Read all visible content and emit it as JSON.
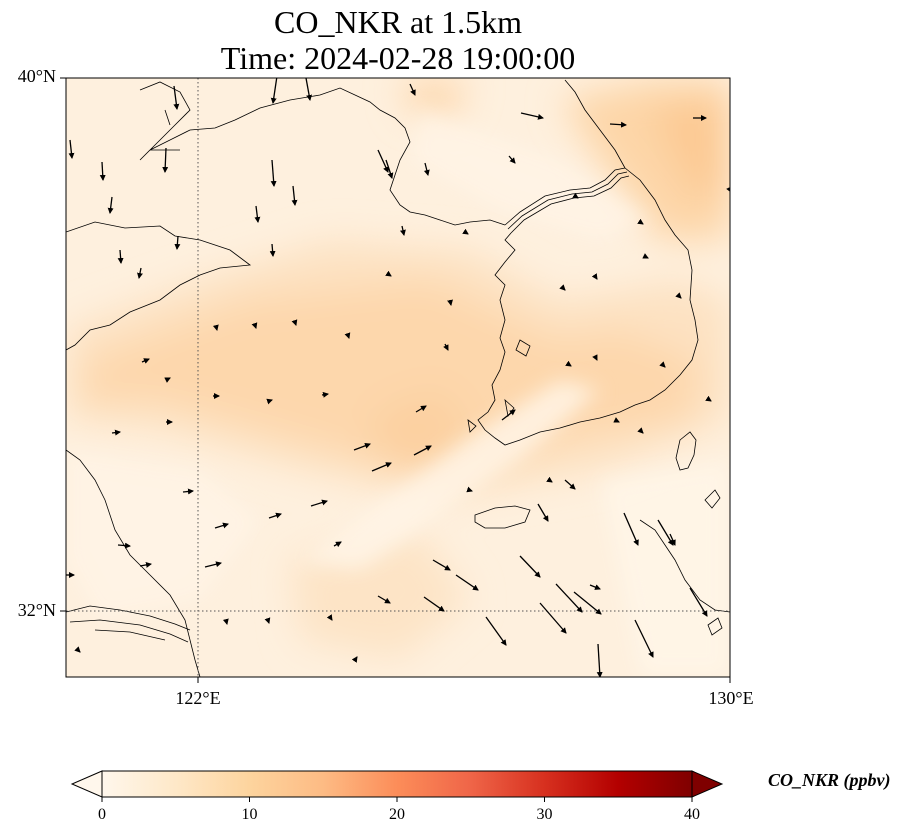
{
  "title": {
    "line1": "CO_NKR at 1.5km",
    "line2": "Time: 2024-02-28 19:00:00"
  },
  "map": {
    "lat_range": [
      31,
      40
    ],
    "lon_range": [
      120,
      130
    ],
    "lat_ticks": [
      {
        "value": 40,
        "label": "40°N"
      },
      {
        "value": 32,
        "label": "32°N"
      }
    ],
    "lon_ticks": [
      {
        "value": 122,
        "label": "122°E"
      },
      {
        "value": 130,
        "label": "130°E"
      }
    ],
    "gridlines": "dotted",
    "coastlines": true,
    "wind_vectors": true
  },
  "colorbar": {
    "label": "CO_NKR (ppbv)",
    "ticks": [
      0,
      10,
      20,
      30,
      40
    ],
    "range": [
      0,
      40
    ],
    "colormap": "OrRd",
    "extend": "both",
    "colors": [
      "#fff7ec",
      "#fee8c8",
      "#fdd49e",
      "#fdbb84",
      "#fc8d59",
      "#ef6548",
      "#d7301f",
      "#b30000",
      "#7f0000"
    ]
  }
}
